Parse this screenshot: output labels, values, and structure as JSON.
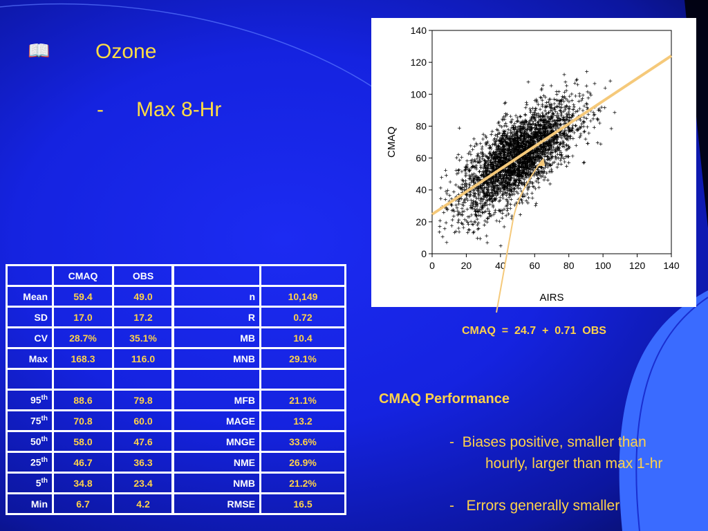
{
  "slide": {
    "bullet_icon": "open-book-icon",
    "title": "Ozone",
    "sub_dash": "-",
    "sub_title": "Max 8-Hr"
  },
  "left_table": {
    "headers": [
      "",
      "CMAQ",
      "OBS"
    ],
    "rows": [
      {
        "label": "Mean",
        "sup": "",
        "cmaq": "59.4",
        "obs": "49.0"
      },
      {
        "label": "SD",
        "sup": "",
        "cmaq": "17.0",
        "obs": "17.2"
      },
      {
        "label": "CV",
        "sup": "",
        "cmaq": "28.7%",
        "obs": "35.1%"
      },
      {
        "label": "Max",
        "sup": "",
        "cmaq": "168.3",
        "obs": "116.0"
      },
      {
        "label": "95",
        "sup": "th",
        "cmaq": "88.6",
        "obs": "79.8"
      },
      {
        "label": "75",
        "sup": "th",
        "cmaq": "70.8",
        "obs": "60.0"
      },
      {
        "label": "50",
        "sup": "th",
        "cmaq": "58.0",
        "obs": "47.6"
      },
      {
        "label": "25",
        "sup": "th",
        "cmaq": "46.7",
        "obs": "36.3"
      },
      {
        "label": "5",
        "sup": "th",
        "cmaq": "34.8",
        "obs": "23.4"
      },
      {
        "label": "Min",
        "sup": "",
        "cmaq": "6.7",
        "obs": "4.2"
      }
    ]
  },
  "right_table": {
    "rows": [
      {
        "label": "n",
        "value": "10,149"
      },
      {
        "label": "R",
        "value": "0.72"
      },
      {
        "label": "MB",
        "value": "10.4"
      },
      {
        "label": "MNB",
        "value": "29.1%"
      },
      {
        "label": "MFB",
        "value": "21.1%"
      },
      {
        "label": "MAGE",
        "value": "13.2"
      },
      {
        "label": "MNGE",
        "value": "33.6%"
      },
      {
        "label": "NME",
        "value": "26.9%"
      },
      {
        "label": "NMB",
        "value": "21.2%"
      },
      {
        "label": "RMSE",
        "value": "16.5"
      }
    ]
  },
  "chart_data": {
    "type": "scatter",
    "xlabel": "AIRS",
    "ylabel": "CMAQ",
    "xlim": [
      0,
      140
    ],
    "ylim": [
      0,
      140
    ],
    "xticks": [
      0,
      20,
      40,
      60,
      80,
      100,
      120,
      140
    ],
    "yticks": [
      0,
      20,
      40,
      60,
      80,
      100,
      120,
      140
    ],
    "marker": "+",
    "point_color": "#000000",
    "n_points": 10149,
    "regression": {
      "intercept": 24.7,
      "slope": 0.71,
      "color": "#f5c97a"
    }
  },
  "equation": "CMAQ  =  24.7  +  0.71  OBS",
  "performance": {
    "title": "CMAQ Performance",
    "line1a": "-  Biases positive, smaller than",
    "line1b": "hourly, larger than max 1-hr",
    "line2": "-   Errors generally smaller"
  },
  "colors": {
    "background": "#1523e0",
    "text_accent": "#ffd24a",
    "table_border": "#ffffff",
    "arrow": "#f5c97a"
  }
}
